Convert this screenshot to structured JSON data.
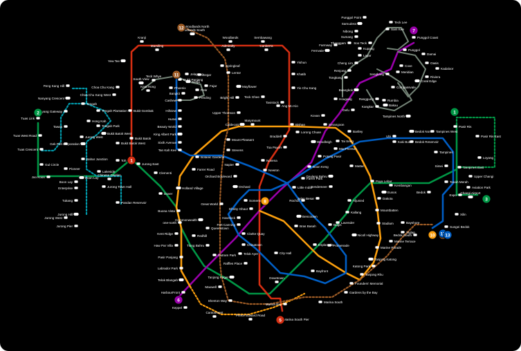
{
  "colors": {
    "background": "#000000",
    "ns": "#d42e12",
    "ew": "#009645",
    "ne": "#9900aa",
    "cc": "#fa9e0d",
    "dt": "#005ec4",
    "te": "#9d5b25",
    "lrt": "#748477",
    "jrl": "#0099aa",
    "station_fill": "#ffffff",
    "label": "#ffffff"
  },
  "line_badges": [
    {
      "code": "2",
      "color_key": "ew"
    },
    {
      "code": "1",
      "color_key": "ew"
    },
    {
      "code": "3",
      "color_key": "ew"
    },
    {
      "code": "1",
      "color_key": "ns"
    },
    {
      "code": "5",
      "color_key": "ns"
    },
    {
      "code": "7",
      "color_key": "ne"
    },
    {
      "code": "6",
      "color_key": "ne"
    },
    {
      "code": "8",
      "color_key": "cc"
    },
    {
      "code": "10",
      "color_key": "cc"
    },
    {
      "code": "11",
      "color_key": "te"
    },
    {
      "code": "12",
      "color_key": "te"
    },
    {
      "code": "13",
      "color_key": "te"
    },
    {
      "code": "12",
      "color_key": "dt"
    },
    {
      "code": "13",
      "color_key": "dt"
    }
  ],
  "stations": [
    {
      "name": "Woodlands South"
    },
    {
      "name": "Woodlands"
    },
    {
      "name": "Sembawang"
    },
    {
      "name": "Kranji"
    },
    {
      "name": "Marsiling"
    },
    {
      "name": "Admiralty"
    },
    {
      "name": "Canberra"
    },
    {
      "name": "Yew Tee"
    },
    {
      "name": "Yishun"
    },
    {
      "name": "Khatib"
    },
    {
      "name": "Yio Chu Kang"
    },
    {
      "name": "Woodlands North"
    },
    {
      "name": "Springleaf"
    },
    {
      "name": "Lentor"
    },
    {
      "name": "Mayflower"
    },
    {
      "name": "Bright Hill"
    },
    {
      "name": "Upper Thomson"
    },
    {
      "name": "Choa Chu Kang"
    },
    {
      "name": "Choa Chu Kang West"
    },
    {
      "name": "Bukit Panjang"
    },
    {
      "name": "Phoenix"
    },
    {
      "name": "Senja"
    },
    {
      "name": "Jelapang"
    },
    {
      "name": "Segar"
    },
    {
      "name": "Fajar"
    },
    {
      "name": "Bangkit"
    },
    {
      "name": "Pending"
    },
    {
      "name": "Petir"
    },
    {
      "name": "South View"
    },
    {
      "name": "Keat Hong"
    },
    {
      "name": "Teck Whye"
    },
    {
      "name": "Tengah"
    },
    {
      "name": "Tengah Plantation"
    },
    {
      "name": "Tengah Park"
    },
    {
      "name": "Hong Kah"
    },
    {
      "name": "Bukit Batok West"
    },
    {
      "name": "Bukit Gombak"
    },
    {
      "name": "Bukit Batok"
    },
    {
      "name": "Cashew"
    },
    {
      "name": "Hillview"
    },
    {
      "name": "Hume"
    },
    {
      "name": "Beauty World"
    },
    {
      "name": "King Albert Park"
    },
    {
      "name": "Sixth Avenue"
    },
    {
      "name": "Tan Kah Kee"
    },
    {
      "name": "Botanic Gardens"
    },
    {
      "name": "Stevens"
    },
    {
      "name": "Napier"
    },
    {
      "name": "Orchard Boulevard"
    },
    {
      "name": "Orchard"
    },
    {
      "name": "Newton"
    },
    {
      "name": "Novena"
    },
    {
      "name": "Toa Payoh"
    },
    {
      "name": "Braddell"
    },
    {
      "name": "Bishan"
    },
    {
      "name": "Marymount"
    },
    {
      "name": "Caldecott"
    },
    {
      "name": "Mount Pleasant"
    },
    {
      "name": "Lorong Chuan"
    },
    {
      "name": "Serangoon"
    },
    {
      "name": "Bartley"
    },
    {
      "name": "Tai Seng"
    },
    {
      "name": "MacPherson"
    },
    {
      "name": "Woodleigh"
    },
    {
      "name": "Potong Pasir"
    },
    {
      "name": "Boon Keng"
    },
    {
      "name": "Farrer Park"
    },
    {
      "name": "Little India"
    },
    {
      "name": "Kovan"
    },
    {
      "name": "Hougang"
    },
    {
      "name": "Buangkok"
    },
    {
      "name": "Sengkang"
    },
    {
      "name": "Punggol"
    },
    {
      "name": "Punggol Coast"
    },
    {
      "name": "Punggol Point"
    },
    {
      "name": "Teck Lee"
    },
    {
      "name": "Sam Kee"
    },
    {
      "name": "Samudera"
    },
    {
      "name": "Nibong"
    },
    {
      "name": "Sumang"
    },
    {
      "name": "Soo Teck"
    },
    {
      "name": "Thanggam"
    },
    {
      "name": "Kupang"
    },
    {
      "name": "Farmway"
    },
    {
      "name": "Fernvale"
    },
    {
      "name": "Layar"
    },
    {
      "name": "Cheng Lim"
    },
    {
      "name": "Tongkang"
    },
    {
      "name": "Renjong"
    },
    {
      "name": "Compassvale"
    },
    {
      "name": "Rumbia"
    },
    {
      "name": "Bakau"
    },
    {
      "name": "Kangkar"
    },
    {
      "name": "Ranggung"
    },
    {
      "name": "Damai"
    },
    {
      "name": "Oasis"
    },
    {
      "name": "Kadaloor"
    },
    {
      "name": "Riviera"
    },
    {
      "name": "Coral Edge"
    },
    {
      "name": "Meridian"
    },
    {
      "name": "Cove"
    },
    {
      "name": "Tavistock"
    },
    {
      "name": "Ang Mo Kio"
    },
    {
      "name": "Teck Ghee"
    },
    {
      "name": "Defu"
    },
    {
      "name": "Tampines North"
    },
    {
      "name": "Pasir Ris"
    },
    {
      "name": "Pasir Ris East"
    },
    {
      "name": "Loyang"
    },
    {
      "name": "Tampines West"
    },
    {
      "name": "Tampines"
    },
    {
      "name": "Tampines East"
    },
    {
      "name": "Bedok North"
    },
    {
      "name": "Bedok Reservoir"
    },
    {
      "name": "Kaki Bukit"
    },
    {
      "name": "Ubi"
    },
    {
      "name": "Simei"
    },
    {
      "name": "Upper Changi"
    },
    {
      "name": "Aviation Park"
    },
    {
      "name": "Changi Airport"
    },
    {
      "name": "Expo"
    },
    {
      "name": "Xilin"
    },
    {
      "name": "Sungei Bedok"
    },
    {
      "name": "Tanah Merah"
    },
    {
      "name": "Bedok"
    },
    {
      "name": "Kembangan"
    },
    {
      "name": "Eunos"
    },
    {
      "name": "Paya Lebar"
    },
    {
      "name": "Aljunied"
    },
    {
      "name": "Kallang"
    },
    {
      "name": "Lavender"
    },
    {
      "name": "Bugis"
    },
    {
      "name": "Mattar"
    },
    {
      "name": "Geylang Bahru"
    },
    {
      "name": "Bendemeer"
    },
    {
      "name": "Jalan Besar"
    },
    {
      "name": "Rochor"
    },
    {
      "name": "Dakota"
    },
    {
      "name": "Mountbatten"
    },
    {
      "name": "Stadium"
    },
    {
      "name": "Nicoll Highway"
    },
    {
      "name": "Promenade"
    },
    {
      "name": "Bayshore"
    },
    {
      "name": "Bedok South"
    },
    {
      "name": "Siglap"
    },
    {
      "name": "Marine Terrace"
    },
    {
      "name": "Marine Parade"
    },
    {
      "name": "Tanjong Katong"
    },
    {
      "name": "Katong Park"
    },
    {
      "name": "Tanjong Rhu"
    },
    {
      "name": "Founders' Memorial"
    },
    {
      "name": "Gardens by the Bay"
    },
    {
      "name": "Marina South"
    },
    {
      "name": "Marina Bay"
    },
    {
      "name": "Marina South Pier"
    },
    {
      "name": "Bayfront"
    },
    {
      "name": "Downtown"
    },
    {
      "name": "Raffles Place"
    },
    {
      "name": "City Hall"
    },
    {
      "name": "Esplanade"
    },
    {
      "name": "Bras Basah"
    },
    {
      "name": "Bencoolen"
    },
    {
      "name": "Dhoby Ghaut"
    },
    {
      "name": "Somerset"
    },
    {
      "name": "Fort Canning"
    },
    {
      "name": "Clarke Quay"
    },
    {
      "name": "Chinatown"
    },
    {
      "name": "Telok Ayer"
    },
    {
      "name": "Tanjong Pagar"
    },
    {
      "name": "Outram Park"
    },
    {
      "name": "Havelock"
    },
    {
      "name": "Great World"
    },
    {
      "name": "Tiong Bahru"
    },
    {
      "name": "Redhill"
    },
    {
      "name": "Queenstown"
    },
    {
      "name": "Commonwealth"
    },
    {
      "name": "Buona Vista"
    },
    {
      "name": "one-north"
    },
    {
      "name": "Kent Ridge"
    },
    {
      "name": "Haw Par Villa"
    },
    {
      "name": "Pasir Panjang"
    },
    {
      "name": "Labrador Park"
    },
    {
      "name": "Telok Blangah"
    },
    {
      "name": "HarbourFront"
    },
    {
      "name": "Keppel"
    },
    {
      "name": "Cantonment"
    },
    {
      "name": "Prince Edward Road"
    },
    {
      "name": "Maxwell"
    },
    {
      "name": "Shenton Way"
    },
    {
      "name": "Holland Village"
    },
    {
      "name": "Farrer Road"
    },
    {
      "name": "Dover"
    },
    {
      "name": "Clementi"
    },
    {
      "name": "Jurong East"
    },
    {
      "name": "Chinese Garden"
    },
    {
      "name": "Lakeside"
    },
    {
      "name": "Boon Lay"
    },
    {
      "name": "Pioneer"
    },
    {
      "name": "Joo Koon"
    },
    {
      "name": "Gul Circle"
    },
    {
      "name": "Tuas Crescent"
    },
    {
      "name": "Tuas West Road"
    },
    {
      "name": "Tuas Link"
    },
    {
      "name": "Nanyang Crescent"
    },
    {
      "name": "Peng Kang Hill"
    },
    {
      "name": "Nanyang Gateway"
    },
    {
      "name": "Tawas"
    },
    {
      "name": "Bahar Junction"
    },
    {
      "name": "Gek Poh"
    },
    {
      "name": "Jurong West"
    },
    {
      "name": "Corporation"
    },
    {
      "name": "Bukit Batok West"
    },
    {
      "name": "Toh Guan"
    },
    {
      "name": "Enterprise"
    },
    {
      "name": "Jurong Town Hall"
    },
    {
      "name": "Pandan Reservoir"
    },
    {
      "name": "Tukang"
    },
    {
      "name": "Jurong Hill"
    },
    {
      "name": "Jurong Pier"
    },
    {
      "name": "Jurong West"
    },
    {
      "name": "Boon Lay"
    }
  ]
}
